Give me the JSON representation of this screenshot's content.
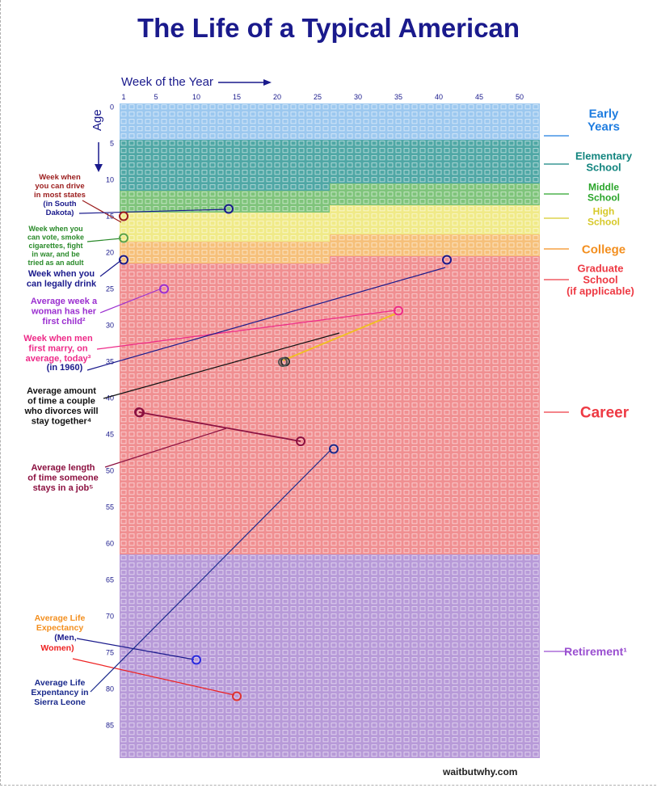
{
  "title": "The Life of a Typical American",
  "axes": {
    "week_title": "Week of the Year",
    "age_title": "Age",
    "week_ticks": [
      "1",
      "5",
      "10",
      "15",
      "20",
      "25",
      "30",
      "35",
      "40",
      "45",
      "50"
    ],
    "age_ticks": [
      "0",
      "5",
      "10",
      "15",
      "20",
      "25",
      "30",
      "35",
      "40",
      "45",
      "50",
      "55",
      "60",
      "65",
      "70",
      "75",
      "80",
      "85"
    ]
  },
  "grid": {
    "weeks": 52,
    "years": 90
  },
  "stages": [
    {
      "label": "Early\nYears",
      "color": "#1f7de0",
      "fill": "#9cc8ef",
      "from": [
        0,
        1
      ],
      "to": [
        5,
        1
      ]
    },
    {
      "label": "Elementary\nSchool",
      "color": "#13857f",
      "fill": "#4fa7a5",
      "from": [
        5,
        1
      ],
      "to": [
        11,
        27
      ]
    },
    {
      "label": "Middle\nSchool",
      "color": "#2aa52a",
      "fill": "#7fc47b",
      "from": [
        11,
        27
      ],
      "to": [
        14,
        27
      ]
    },
    {
      "label": "High\nSchool",
      "color": "#d7c92a",
      "fill": "#f0ea88",
      "from": [
        14,
        27
      ],
      "to": [
        18,
        27
      ]
    },
    {
      "label": "College",
      "color": "#f38f1f",
      "fill": "#f6c07a",
      "from": [
        18,
        27
      ],
      "to": [
        22,
        27
      ]
    },
    {
      "label": "Graduate\nSchool\n(if applicable)",
      "color": "#ee3a44",
      "fill": "#f08f91",
      "from": [
        22,
        27
      ],
      "to": [
        24,
        1
      ]
    },
    {
      "label": "Career",
      "color": "#ee3a44",
      "fill": "#f08f91",
      "from": [
        24,
        1
      ],
      "to": [
        62,
        52
      ]
    },
    {
      "label": "Retirement¹",
      "color": "#9a4fd0",
      "fill": "#b79ad8",
      "from": [
        62,
        52
      ],
      "to": [
        90,
        1
      ]
    }
  ],
  "annotations": [
    {
      "text": "Week when\nyou can drive\nin most states",
      "color": "#9b1c1c",
      "marker": [
        15,
        1
      ]
    },
    {
      "text": "(in South\nDakota)",
      "color": "#1a1a8c",
      "marker": [
        14,
        14
      ]
    },
    {
      "text": "Week when you\ncan vote, smoke\ncigarettes, fight\nin war, and be\ntried as an adult",
      "color": "#2a8a2a",
      "marker": [
        18,
        1
      ]
    },
    {
      "text": "Week when you\ncan legally drink",
      "color": "#1a1a8c",
      "marker": [
        21,
        1
      ]
    },
    {
      "text": "Average week a\nwoman has her\nfirst child²",
      "color": "#9b2fd0",
      "marker": [
        25,
        6
      ]
    },
    {
      "text": "Week when men\nfirst marry, on\naverage, today³",
      "color": "#ee2a88",
      "marker": [
        28,
        35
      ]
    },
    {
      "text": "(in 1960)",
      "color": "#1a1a8c",
      "marker": [
        21,
        41
      ]
    },
    {
      "text": "Average amount\nof time a couple\nwho divorces will\nstay together⁴",
      "color": "#111111",
      "marker": [
        35,
        21
      ]
    },
    {
      "text": "Average length\nof time someone\nstays in a job⁵",
      "color": "#8c1040",
      "marker": [
        42,
        3
      ]
    },
    {
      "text": "Average Life\nExpectancy",
      "color": "#f38f1f"
    },
    {
      "text": "(Men,",
      "color": "#1a1a8c",
      "marker": [
        76,
        10
      ]
    },
    {
      "text": "Women)",
      "color": "#ee2222",
      "marker": [
        81,
        15
      ]
    },
    {
      "text": "Average Life\nExpentancy in\nSierra Leone",
      "color": "#1a2a8c",
      "marker": [
        47,
        27
      ]
    }
  ],
  "credit": "waitbutwhy.com"
}
